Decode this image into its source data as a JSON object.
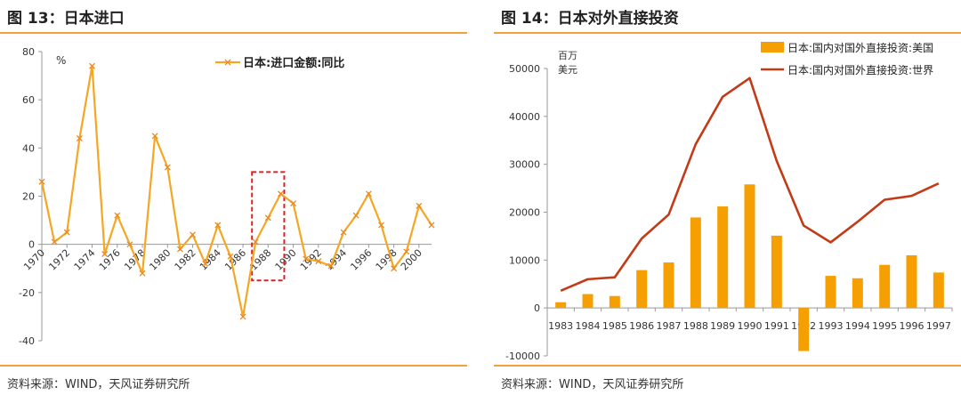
{
  "left": {
    "title": "图 13：日本进口",
    "source": "资料来源：WIND，天风证券研究所"
  },
  "right": {
    "title": "图 14：日本对外直接投资",
    "source": "资料来源：WIND，天风证券研究所"
  },
  "colors": {
    "accent": "#f2a23a",
    "line_orange": "#f5a623",
    "line_red": "#c23b16",
    "bar_orange": "#f5a000",
    "highlight_box": "#e02020"
  },
  "chart_data": [
    {
      "type": "line",
      "unit": "%",
      "legend_position": "top-center",
      "grid": false,
      "series": [
        {
          "name": "日本:进口金额:同比",
          "x": [
            1970,
            1971,
            1972,
            1973,
            1974,
            1975,
            1976,
            1977,
            1978,
            1979,
            1980,
            1981,
            1982,
            1983,
            1984,
            1985,
            1986,
            1987,
            1988,
            1989,
            1990,
            1991,
            1992,
            1993,
            1994,
            1995,
            1996,
            1997,
            1998,
            1999,
            2000,
            2001
          ],
          "values": [
            26,
            1,
            5,
            44,
            74,
            -4,
            12,
            0,
            -12,
            45,
            32,
            -2,
            4,
            -8,
            8,
            -5,
            -30,
            1,
            11,
            21,
            17,
            -6,
            -7,
            -9,
            5,
            12,
            21,
            8,
            -10,
            -3,
            16,
            8
          ]
        }
      ],
      "xlim": [
        1970,
        2001
      ],
      "ylim": [
        -40,
        80
      ],
      "yticks": [
        -40,
        -20,
        0,
        20,
        40,
        60,
        80
      ],
      "xtick_labels": [
        "1970",
        "1972",
        "1974",
        "1976",
        "1978",
        "1980",
        "1982",
        "1984",
        "1986",
        "1988",
        "1990",
        "1992",
        "1994",
        "1996",
        "1998",
        "2000"
      ],
      "xtick_rotation": -45,
      "annotation": {
        "type": "dashed-rect",
        "x_from": 1987,
        "x_to": 1989,
        "y_from": -15,
        "y_to": 30
      }
    },
    {
      "type": "bar+line",
      "unit_label": [
        "百万",
        "美元"
      ],
      "legend_position": "top-right",
      "grid": false,
      "categories": [
        "1983",
        "1984",
        "1985",
        "1986",
        "1987",
        "1988",
        "1989",
        "1990",
        "1991",
        "1992",
        "1993",
        "1994",
        "1995",
        "1996",
        "1997"
      ],
      "series": [
        {
          "name": "日本:国内对国外直接投资:美国",
          "kind": "bar",
          "values": [
            1200,
            2900,
            2500,
            7900,
            9500,
            18900,
            21200,
            25800,
            15100,
            -9000,
            6700,
            6200,
            9000,
            11000,
            7400
          ]
        },
        {
          "name": "日本:国内对国外直接投资:世界",
          "kind": "line",
          "values": [
            3600,
            6000,
            6400,
            14500,
            19500,
            34200,
            44100,
            48000,
            30700,
            17200,
            13700,
            18000,
            22600,
            23400,
            26000
          ]
        }
      ],
      "ylim": [
        -10000,
        50000
      ],
      "yticks": [
        -10000,
        0,
        10000,
        20000,
        30000,
        40000,
        50000
      ]
    }
  ]
}
